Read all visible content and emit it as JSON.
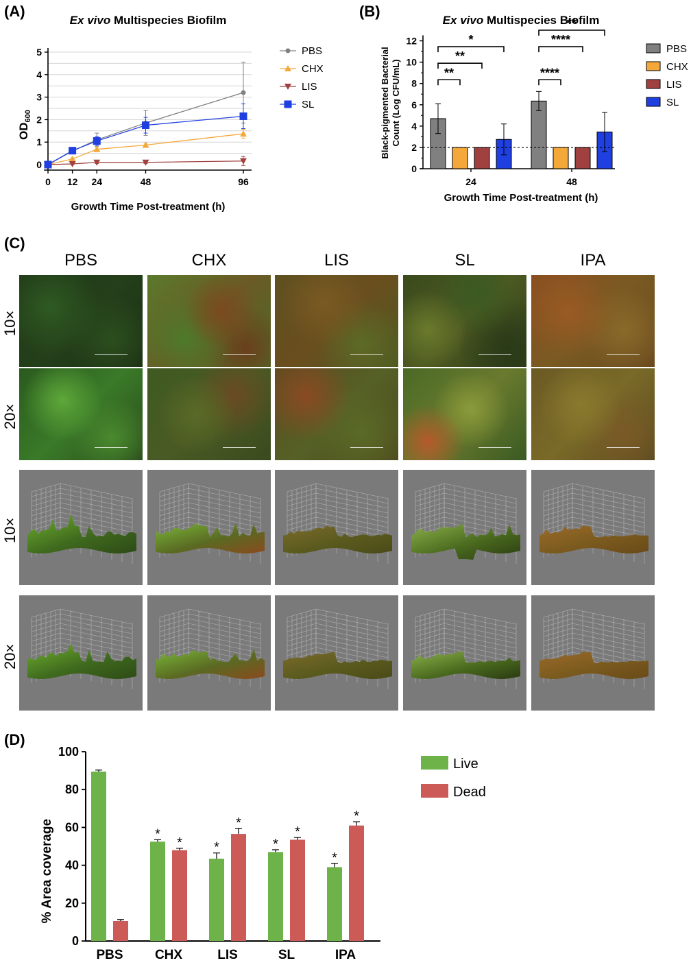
{
  "panels": {
    "A": "(A)",
    "B": "(B)",
    "C": "(C)",
    "D": "(D)"
  },
  "chart_data": [
    {
      "id": "A",
      "type": "line",
      "title_italic": "Ex vivo",
      "title_rest": " Multispecies Biofilm",
      "xlabel": "Growth Time Post-treatment (h)",
      "ylabel_main": "OD",
      "ylabel_sub": "600",
      "x": [
        0,
        12,
        24,
        48,
        96
      ],
      "xlim": [
        0,
        96
      ],
      "ylim": [
        0,
        5
      ],
      "yticks": [
        0,
        1,
        2,
        3,
        4,
        5
      ],
      "grid": true,
      "legend_position": "right",
      "series": [
        {
          "name": "PBS",
          "color": "#808080",
          "marker": "circle",
          "values": [
            0,
            0.6,
            1.1,
            1.85,
            3.2
          ],
          "err": [
            0,
            0.1,
            0.3,
            0.55,
            1.35
          ]
        },
        {
          "name": "CHX",
          "color": "#f4a83a",
          "marker": "triangle",
          "values": [
            0,
            0.25,
            0.68,
            0.87,
            1.37
          ],
          "err": [
            0,
            0.05,
            0.1,
            0.1,
            0.2
          ]
        },
        {
          "name": "LIS",
          "color": "#a0413f",
          "marker": "triangle-down",
          "values": [
            0,
            0.03,
            0.1,
            0.1,
            0.16
          ],
          "err": [
            0,
            0.02,
            0.05,
            0.05,
            0.2
          ]
        },
        {
          "name": "SL",
          "color": "#1f3fe0",
          "marker": "square",
          "values": [
            0,
            0.62,
            1.05,
            1.75,
            2.15
          ],
          "err": [
            0,
            0.1,
            0.2,
            0.35,
            0.55
          ]
        }
      ]
    },
    {
      "id": "B",
      "type": "bar",
      "title_italic": "Ex vivo",
      "title_rest": " Multispecies Biofilm",
      "xlabel": "Growth Time Post-treatment (h)",
      "ylabel": [
        "Black-pigmented Bacterial",
        "Count (Log CFU/mL)"
      ],
      "categories": [
        "24",
        "48"
      ],
      "ylim": [
        0,
        13
      ],
      "yticks": [
        0,
        2,
        4,
        6,
        8,
        10,
        12
      ],
      "detection_limit": 2,
      "legend_position": "right",
      "series": [
        {
          "name": "PBS",
          "color": "#808080",
          "values": [
            4.7,
            6.35
          ],
          "err": [
            1.4,
            0.9
          ]
        },
        {
          "name": "CHX",
          "color": "#f4a83a",
          "values": [
            2,
            2
          ],
          "err": [
            0,
            0
          ]
        },
        {
          "name": "LIS",
          "color": "#a0413f",
          "values": [
            2,
            2
          ],
          "err": [
            0,
            0
          ]
        },
        {
          "name": "SL",
          "color": "#1f3fe0",
          "values": [
            2.75,
            3.45
          ],
          "err": [
            1.45,
            1.85
          ]
        }
      ],
      "significance": [
        {
          "category": "24",
          "label": "**",
          "y": 8.35
        },
        {
          "category": "24",
          "label": "**",
          "y": 9.9
        },
        {
          "category": "24",
          "label": "*",
          "y": 11.45
        },
        {
          "category": "48",
          "label": "****",
          "y": 8.35
        },
        {
          "category": "48",
          "label": "****",
          "y": 11.45
        },
        {
          "category": "48",
          "label": "**",
          "y": 13
        }
      ]
    },
    {
      "id": "D",
      "type": "bar",
      "xlabel": "",
      "ylabel": "% Area coverage",
      "categories": [
        "PBS",
        "CHX",
        "LIS",
        "SL",
        "IPA"
      ],
      "ylim": [
        0,
        100
      ],
      "yticks": [
        0,
        20,
        40,
        60,
        80,
        100
      ],
      "legend_position": "top-right",
      "series": [
        {
          "name": "Live",
          "color": "#6db34a",
          "values": [
            89.5,
            52.5,
            43.5,
            47,
            39
          ],
          "err": [
            0.8,
            1,
            3,
            1.2,
            2
          ]
        },
        {
          "name": "Dead",
          "color": "#cc5a57",
          "values": [
            10.5,
            48,
            56.5,
            53.5,
            61
          ],
          "err": [
            0.8,
            1,
            3,
            1.2,
            2
          ]
        }
      ],
      "significance_marker": "*",
      "significant_categories": [
        "CHX",
        "LIS",
        "SL",
        "IPA"
      ]
    }
  ],
  "microscopy": {
    "columns": [
      "PBS",
      "CHX",
      "LIS",
      "SL",
      "IPA"
    ],
    "row_labels": [
      "10×",
      "20×",
      "10×",
      "20×"
    ]
  }
}
